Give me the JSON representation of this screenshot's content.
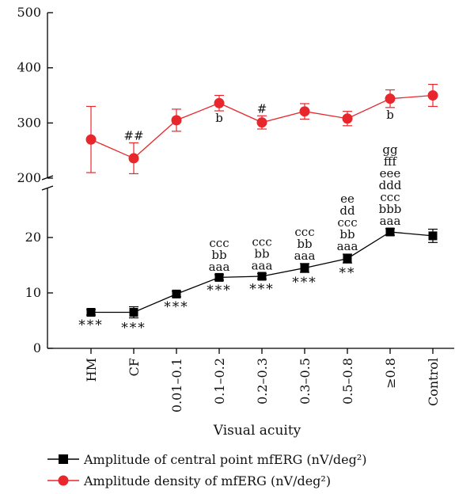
{
  "chart_data": {
    "type": "line",
    "xlabel": "Visual acuity",
    "categories": [
      "HM",
      "CF",
      "0.01–0.1",
      "0.1–0.2",
      "0.2–0.3",
      "0.3–0.5",
      "0.5–0.8",
      "≥0.8",
      "Control"
    ],
    "y_axis": {
      "broken": true,
      "lower_range": [
        0,
        25
      ],
      "upper_range": [
        200,
        500
      ],
      "lower_ticks": [
        "0",
        "10",
        "20"
      ],
      "upper_ticks": [
        "200",
        "300",
        "400",
        "500"
      ]
    },
    "series": [
      {
        "name": "Amplitude of central point mfERG (nV/deg²)",
        "color": "#000000",
        "marker": "square",
        "segment": "lower",
        "values": [
          6.5,
          6.5,
          9.8,
          12.8,
          13.0,
          14.5,
          16.2,
          21.0,
          20.3
        ],
        "errors": [
          0.5,
          1.0,
          0.5,
          0.5,
          0.5,
          0.8,
          0.8,
          0.6,
          1.2
        ],
        "above_labels": [
          [],
          [],
          [],
          [
            "ccc",
            "bb",
            "aaa"
          ],
          [
            "ccc",
            "bb",
            "aaa"
          ],
          [
            "ccc",
            "bb",
            "aaa"
          ],
          [
            "ee",
            "dd",
            "ccc",
            "bb",
            "aaa"
          ],
          [],
          []
        ],
        "below_labels": [
          "***",
          "***",
          "***",
          "***",
          "***",
          "***",
          "**",
          "",
          ""
        ]
      },
      {
        "name": "Amplitude density of mfERG (nV/deg²)",
        "color": "#e8272d",
        "marker": "circle",
        "segment": "upper",
        "values": [
          270,
          236,
          305,
          336,
          301,
          321,
          308,
          344,
          350
        ],
        "errors": [
          60,
          28,
          20,
          14,
          12,
          14,
          13,
          16,
          20
        ],
        "above_labels": [
          "",
          "##",
          "",
          "",
          "#",
          "",
          "",
          "",
          ""
        ],
        "below_labels": [
          "",
          "",
          "",
          "b",
          "",
          "",
          "",
          "b",
          ""
        ]
      }
    ],
    "gap_labels": [
      {
        "category": "≥0.8",
        "lines": [
          "gg",
          "fff",
          "eee",
          "ddd",
          "ccc",
          "bbb",
          "aaa"
        ]
      }
    ]
  }
}
